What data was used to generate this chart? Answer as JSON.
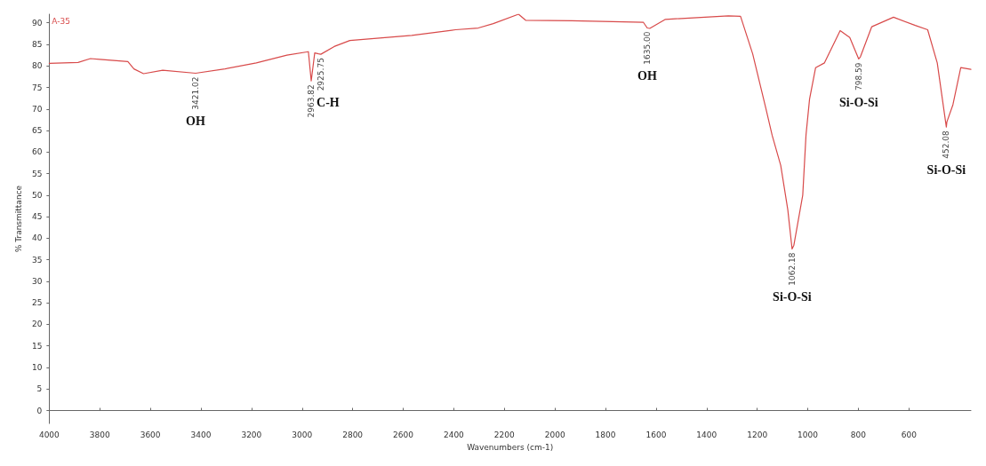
{
  "chart_data": {
    "type": "line",
    "xlabel": "Wavenumbers (cm-1)",
    "ylabel": "% Transmittance",
    "xlim": [
      4000,
      355
    ],
    "xticks": [
      4000,
      3800,
      3600,
      3400,
      3200,
      3000,
      2800,
      2600,
      2400,
      2200,
      2000,
      1800,
      1600,
      1400,
      1200,
      1000,
      800,
      600
    ],
    "ylim": [
      -3,
      92
    ],
    "yticks": [
      0,
      5,
      10,
      15,
      20,
      25,
      30,
      35,
      40,
      45,
      50,
      55,
      60,
      65,
      70,
      75,
      80,
      85,
      90
    ],
    "grid": false,
    "marker": "none",
    "line_style": "solid",
    "series": [
      {
        "color": "#d84a4a",
        "x": [
          4000,
          3886,
          3837,
          3800,
          3689,
          3665,
          3627,
          3551,
          3421.02,
          3305,
          3181,
          3060,
          2975,
          2963.82,
          2950,
          2935,
          2925.75,
          2873,
          2811,
          2566,
          2393,
          2303,
          2244,
          2144,
          2116,
          1933,
          1650,
          1635,
          1625,
          1563,
          1314,
          1266,
          1218,
          1166,
          1141,
          1107,
          1079,
          1062.18,
          1055,
          1020,
          1007,
          993,
          969,
          934,
          872,
          834,
          798.59,
          792,
          747,
          661,
          575,
          526,
          488,
          452.08,
          450,
          426,
          395,
          355
        ],
        "values": [
          80.6,
          80.8,
          81.7,
          81.5,
          81,
          79.3,
          78.2,
          79,
          78.3,
          79.3,
          80.7,
          82.5,
          83.3,
          76.5,
          83,
          82.8,
          82.7,
          84.5,
          85.9,
          87.1,
          88.4,
          88.8,
          89.8,
          92,
          90.6,
          90.5,
          90.1,
          88.8,
          88.7,
          90.8,
          91.6,
          91.5,
          82.8,
          70.2,
          63.9,
          56.9,
          46.6,
          37.5,
          38.4,
          50,
          64,
          72.3,
          79.6,
          80.7,
          88.2,
          86.6,
          81.6,
          82.1,
          89.1,
          91.3,
          89.4,
          88.4,
          80.7,
          65.8,
          67,
          71,
          79.6,
          79.2
        ]
      }
    ],
    "annotations": [
      "A-35",
      {
        "text": "3421.02",
        "x": 3421.02,
        "y": 78.3
      },
      "OH",
      {
        "text": "2963.82",
        "x": 2963.82,
        "y": 76.5
      },
      {
        "text": "2925.75",
        "x": 2925.75,
        "y": 82.7
      },
      "C-H",
      {
        "text": "1635.00",
        "x": 1635,
        "y": 88.8
      },
      "OH",
      {
        "text": "1062.18",
        "x": 1062.18,
        "y": 37.5
      },
      "Si-O-Si",
      {
        "text": "798.59",
        "x": 798.59,
        "y": 81.6
      },
      "Si-O-Si",
      {
        "text": "452.08",
        "x": 452.08,
        "y": 65.8
      },
      "Si-O-Si"
    ]
  }
}
